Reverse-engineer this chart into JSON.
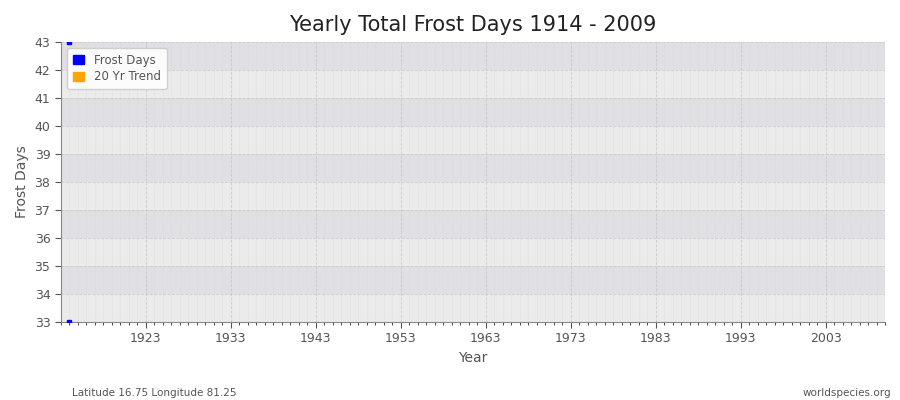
{
  "title": "Yearly Total Frost Days 1914 - 2009",
  "xlabel": "Year",
  "ylabel": "Frost Days",
  "xlim": [
    1913,
    2010
  ],
  "ylim": [
    33,
    43
  ],
  "yticks": [
    33,
    34,
    35,
    36,
    37,
    38,
    39,
    40,
    41,
    42,
    43
  ],
  "xticks": [
    1923,
    1933,
    1943,
    1953,
    1963,
    1973,
    1983,
    1993,
    2003
  ],
  "frost_days_x": [
    1914
  ],
  "frost_days_y": [
    43
  ],
  "frost_days_bottom_x": [
    1914
  ],
  "frost_days_bottom_y": [
    33
  ],
  "frost_color": "#0000ff",
  "trend_color": "#ffa500",
  "fig_background_color": "#ffffff",
  "axes_background_color": "#eaeaea",
  "band_color_light": "#ebebeb",
  "band_color_dark": "#e0e0e4",
  "grid_major_color": "#c8c8cc",
  "grid_minor_color": "#d5d5d8",
  "axis_color": "#888888",
  "text_color": "#555555",
  "title_color": "#222222",
  "bottom_left_text": "Latitude 16.75 Longitude 81.25",
  "bottom_right_text": "worldspecies.org",
  "title_fontsize": 15,
  "label_fontsize": 10,
  "tick_fontsize": 9,
  "legend_labels": [
    "Frost Days",
    "20 Yr Trend"
  ]
}
